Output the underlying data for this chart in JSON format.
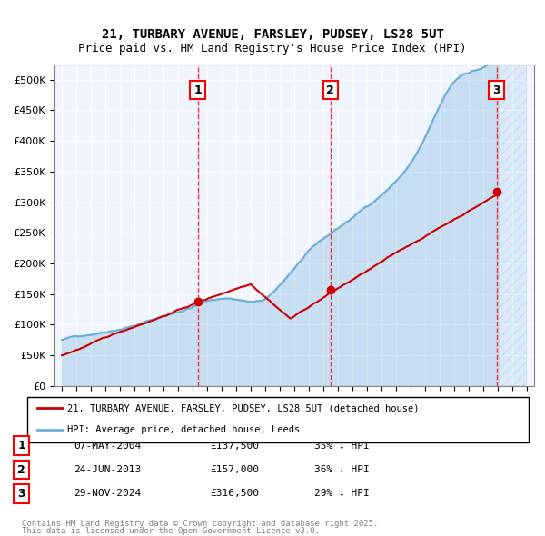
{
  "title1": "21, TURBARY AVENUE, FARSLEY, PUDSEY, LS28 5UT",
  "title2": "Price paid vs. HM Land Registry's House Price Index (HPI)",
  "legend_red": "21, TURBARY AVENUE, FARSLEY, PUDSEY, LS28 5UT (detached house)",
  "legend_blue": "HPI: Average price, detached house, Leeds",
  "sale_events": [
    {
      "num": 1,
      "date": "07-MAY-2004",
      "price": 137500,
      "pct": "35% ↓ HPI",
      "x_year": 2004.35
    },
    {
      "num": 2,
      "date": "24-JUN-2013",
      "price": 157000,
      "pct": "36% ↓ HPI",
      "x_year": 2013.48
    },
    {
      "num": 3,
      "date": "29-NOV-2024",
      "price": 316500,
      "pct": "29% ↓ HPI",
      "x_year": 2024.91
    }
  ],
  "footnote1": "Contains HM Land Registry data © Crown copyright and database right 2025.",
  "footnote2": "This data is licensed under the Open Government Licence v3.0.",
  "hpi_color": "#6baed6",
  "price_color": "#cc0000",
  "background_color": "#f0f4ff",
  "ylim": [
    0,
    525000
  ],
  "xlim_start": 1994.5,
  "xlim_end": 2027.5,
  "future_start": 2025.0
}
